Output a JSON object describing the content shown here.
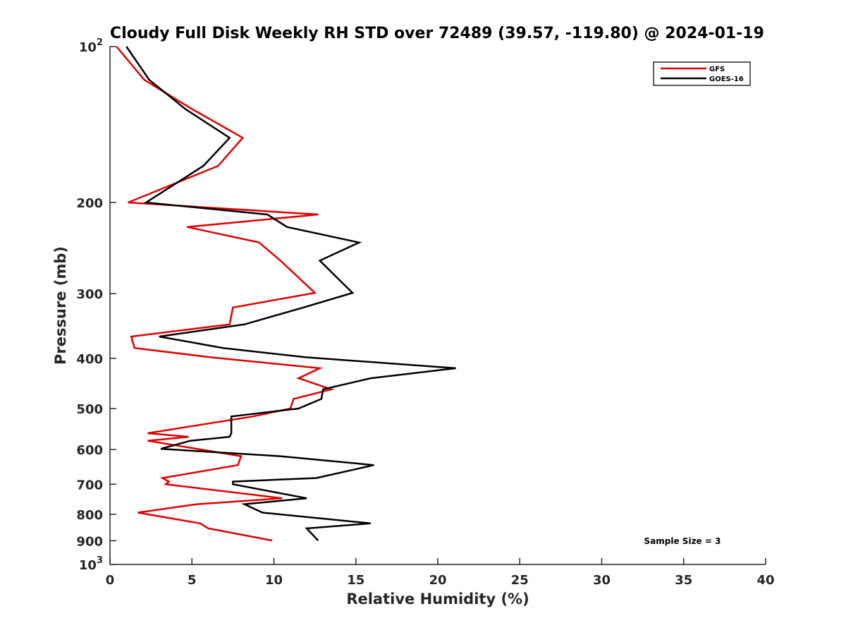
{
  "chart_data": {
    "type": "line",
    "title": "Cloudy Full Disk Weekly RH STD over 72489 (39.57, -119.80) @ 2024-01-19",
    "xlabel": "Relative Humidity (%)",
    "ylabel": "Pressure (mb)",
    "xlim": [
      0,
      40
    ],
    "ylim": [
      100,
      1000
    ],
    "yscale": "log",
    "y_reversed": true,
    "x_ticks": [
      "0",
      "5",
      "10",
      "15",
      "20",
      "25",
      "30",
      "35",
      "40"
    ],
    "y_ticks": [
      {
        "value": 100,
        "base": "10",
        "exp": "2"
      },
      {
        "value": 200,
        "label": "200"
      },
      {
        "value": 300,
        "label": "300"
      },
      {
        "value": 400,
        "label": "400"
      },
      {
        "value": 500,
        "label": "500"
      },
      {
        "value": 600,
        "label": "600"
      },
      {
        "value": 700,
        "label": "700"
      },
      {
        "value": 800,
        "label": "800"
      },
      {
        "value": 900,
        "label": "900"
      },
      {
        "value": 1000,
        "base": "10",
        "exp": "3"
      }
    ],
    "legend_position": "top-right",
    "annotation": "Sample Size = 3",
    "series": [
      {
        "name": "GFS",
        "color": "#e00000",
        "points": [
          [
            0.4,
            100
          ],
          [
            2.1,
            116
          ],
          [
            5.0,
            132
          ],
          [
            8.1,
            150
          ],
          [
            6.6,
            170
          ],
          [
            1.1,
            200
          ],
          [
            12.7,
            211
          ],
          [
            4.7,
            223
          ],
          [
            9.1,
            239
          ],
          [
            10.4,
            259
          ],
          [
            12.5,
            299
          ],
          [
            7.5,
            319
          ],
          [
            7.3,
            344
          ],
          [
            1.3,
            363
          ],
          [
            1.5,
            382
          ],
          [
            6.1,
            398
          ],
          [
            12.8,
            418
          ],
          [
            11.5,
            437
          ],
          [
            13.5,
            459
          ],
          [
            11.2,
            479
          ],
          [
            11.0,
            500
          ],
          [
            8.7,
            518
          ],
          [
            2.3,
            558
          ],
          [
            4.8,
            567
          ],
          [
            2.3,
            577
          ],
          [
            5.3,
            598
          ],
          [
            8.0,
            618
          ],
          [
            7.8,
            643
          ],
          [
            3.2,
            681
          ],
          [
            3.6,
            692
          ],
          [
            3.4,
            700
          ],
          [
            10.5,
            745
          ],
          [
            5.3,
            765
          ],
          [
            1.7,
            794
          ],
          [
            5.5,
            833
          ],
          [
            6.0,
            852
          ],
          [
            9.9,
            899
          ]
        ]
      },
      {
        "name": "GOES-16",
        "color": "#000000",
        "points": [
          [
            1.0,
            100
          ],
          [
            2.4,
            116
          ],
          [
            4.6,
            132
          ],
          [
            7.3,
            150
          ],
          [
            5.7,
            170
          ],
          [
            2.2,
            200
          ],
          [
            9.6,
            211
          ],
          [
            10.8,
            223
          ],
          [
            15.2,
            239
          ],
          [
            12.8,
            259
          ],
          [
            14.8,
            299
          ],
          [
            11.8,
            319
          ],
          [
            8.2,
            344
          ],
          [
            3.0,
            363
          ],
          [
            6.9,
            382
          ],
          [
            11.9,
            398
          ],
          [
            21.1,
            418
          ],
          [
            15.9,
            437
          ],
          [
            13.0,
            459
          ],
          [
            12.9,
            479
          ],
          [
            11.5,
            500
          ],
          [
            7.4,
            518
          ],
          [
            7.4,
            558
          ],
          [
            7.3,
            567
          ],
          [
            4.9,
            577
          ],
          [
            3.1,
            598
          ],
          [
            10.4,
            618
          ],
          [
            16.1,
            643
          ],
          [
            12.6,
            681
          ],
          [
            7.5,
            692
          ],
          [
            7.5,
            700
          ],
          [
            12.0,
            745
          ],
          [
            8.2,
            765
          ],
          [
            9.3,
            794
          ],
          [
            15.9,
            833
          ],
          [
            12.0,
            852
          ],
          [
            12.7,
            899
          ]
        ]
      }
    ]
  }
}
